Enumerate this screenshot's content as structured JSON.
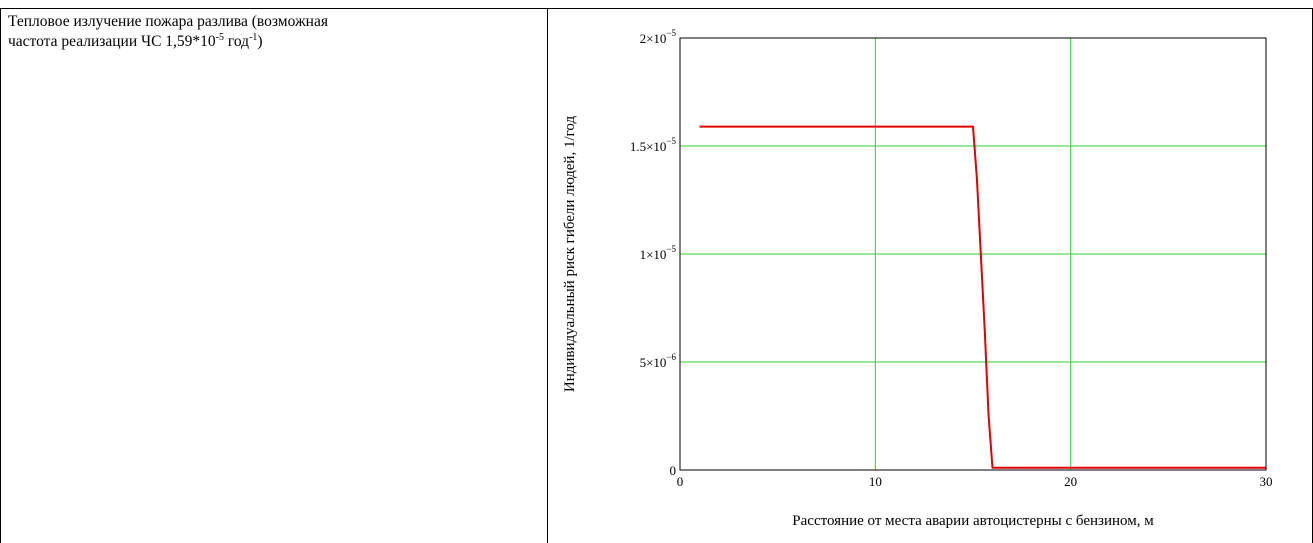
{
  "caption": {
    "line1": "Тепловое излучение пожара разлива (возможная",
    "line2_pre": "частота реализации ЧС 1,59*10",
    "line2_exp1": "-5",
    "line2_mid": " год",
    "line2_exp2": "-1",
    "line2_post": ")"
  },
  "colors": {
    "series": "#e00000",
    "grid": "#33cc33",
    "axis": "#000000"
  },
  "chart_data": {
    "type": "line",
    "title": "",
    "xlabel": "Расстояние от места аварии автоцистерны с бензином, м",
    "ylabel": "Индивидуальный риск гибели людей, 1/год",
    "xlim": [
      0,
      30
    ],
    "ylim": [
      0,
      2e-05
    ],
    "grid": true,
    "x_ticks": [
      {
        "value": 0,
        "label": "0"
      },
      {
        "value": 10,
        "label": "10"
      },
      {
        "value": 20,
        "label": "20"
      },
      {
        "value": 30,
        "label": "30"
      }
    ],
    "y_ticks": [
      {
        "value": 0,
        "mant": "0",
        "exp": ""
      },
      {
        "value": 5e-06,
        "mant": "5×10",
        "exp": "−6"
      },
      {
        "value": 1e-05,
        "mant": "1×10",
        "exp": "−5"
      },
      {
        "value": 1.5e-05,
        "mant": "1.5×10",
        "exp": "−5"
      },
      {
        "value": 2e-05,
        "mant": "2×10",
        "exp": "−5"
      }
    ],
    "series": [
      {
        "x": [
          1,
          15,
          15.2,
          15.4,
          15.6,
          15.8,
          16,
          16.5,
          30
        ],
        "y": [
          1.59e-05,
          1.59e-05,
          1.35e-05,
          1e-05,
          6.5e-06,
          2.5e-06,
          1e-07,
          1e-07,
          1e-07
        ]
      }
    ]
  }
}
